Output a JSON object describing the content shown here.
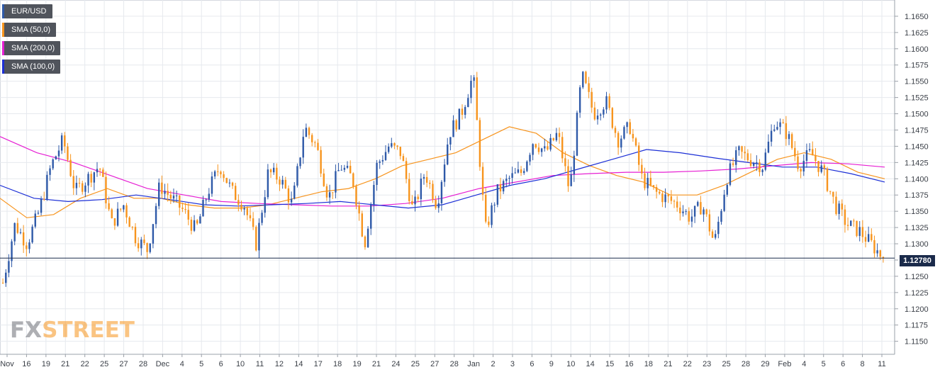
{
  "legend": [
    {
      "label": "EUR/USD",
      "color": "#2e59a8"
    },
    {
      "label": "SMA (50,0)",
      "color": "#f7941d"
    },
    {
      "label": "SMA (200,0)",
      "color": "#e61fd3"
    },
    {
      "label": "SMA (100,0)",
      "color": "#1c2fd6"
    }
  ],
  "watermark": {
    "part1": "FX",
    "part2": "STREET"
  },
  "last_price_label": "1.12780",
  "colors": {
    "up": "#2e59a8",
    "down": "#f7941d",
    "sma50": "#f7941d",
    "sma100": "#1c2fd6",
    "sma200": "#e61fd3",
    "grid": "#e6e9ee"
  },
  "chart_data": {
    "type": "line",
    "title": "",
    "xlabel": "",
    "ylabel": "",
    "ylim": [
      1.113,
      1.1675
    ],
    "yticks": [
      "1.1150",
      "1.1175",
      "1.1200",
      "1.1225",
      "1.1250",
      "1.1275",
      "1.1300",
      "1.1325",
      "1.1350",
      "1.1375",
      "1.1400",
      "1.1425",
      "1.1450",
      "1.1475",
      "1.1500",
      "1.1525",
      "1.1550",
      "1.1575",
      "1.1600",
      "1.1625",
      "1.1650"
    ],
    "xticks": [
      "Nov",
      "16",
      "19",
      "21",
      "22",
      "25",
      "27",
      "28",
      "Dec",
      "4",
      "5",
      "6",
      "10",
      "11",
      "12",
      "14",
      "17",
      "18",
      "19",
      "21",
      "24",
      "25",
      "27",
      "28",
      "Jan",
      "2",
      "3",
      "6",
      "9",
      "10",
      "14",
      "15",
      "16",
      "18",
      "21",
      "22",
      "23",
      "25",
      "28",
      "29",
      "Feb",
      "4",
      "5",
      "6",
      "8",
      "11"
    ],
    "grid": true,
    "last_price": 1.1278,
    "price_samples": [
      1.124,
      1.133,
      1.13,
      1.135,
      1.142,
      1.146,
      1.138,
      1.14,
      1.142,
      1.133,
      1.136,
      1.131,
      1.129,
      1.139,
      1.137,
      1.135,
      1.132,
      1.138,
      1.142,
      1.138,
      1.136,
      1.13,
      1.141,
      1.14,
      1.136,
      1.148,
      1.145,
      1.137,
      1.142,
      1.14,
      1.13,
      1.142,
      1.145,
      1.144,
      1.135,
      1.141,
      1.136,
      1.147,
      1.15,
      1.156,
      1.132,
      1.138,
      1.14,
      1.141,
      1.146,
      1.144,
      1.147,
      1.138,
      1.156,
      1.15,
      1.152,
      1.146,
      1.148,
      1.14,
      1.138,
      1.137,
      1.136,
      1.134,
      1.136,
      1.13,
      1.14,
      1.144,
      1.143,
      1.142,
      1.149,
      1.147,
      1.142,
      1.144,
      1.141,
      1.136,
      1.133,
      1.132,
      1.13,
      1.1278
    ],
    "series": [
      {
        "name": "EUR/USD",
        "color": "#2e59a8"
      },
      {
        "name": "SMA (50,0)",
        "color": "#f7941d",
        "values": [
          1.137,
          1.134,
          1.1345,
          1.137,
          1.1385,
          1.137,
          1.137,
          1.136,
          1.1355,
          1.1355,
          1.136,
          1.137,
          1.138,
          1.1385,
          1.14,
          1.142,
          1.143,
          1.144,
          1.146,
          1.148,
          1.147,
          1.144,
          1.142,
          1.1405,
          1.1395,
          1.1375,
          1.1375,
          1.139,
          1.141,
          1.143,
          1.144,
          1.143,
          1.141,
          1.14
        ]
      },
      {
        "name": "SMA (200,0)",
        "color": "#e61fd3",
        "values": [
          1.1465,
          1.144,
          1.1425,
          1.1405,
          1.1385,
          1.1375,
          1.1365,
          1.1362,
          1.136,
          1.1358,
          1.1358,
          1.1362,
          1.137,
          1.1385,
          1.1395,
          1.1405,
          1.1408,
          1.141,
          1.141,
          1.1412,
          1.1415,
          1.142,
          1.1425,
          1.1423,
          1.1418
        ]
      },
      {
        "name": "SMA (100,0)",
        "color": "#1c2fd6",
        "values": [
          1.139,
          1.137,
          1.1365,
          1.1368,
          1.1375,
          1.1368,
          1.136,
          1.1358,
          1.136,
          1.1362,
          1.1365,
          1.136,
          1.1355,
          1.136,
          1.1375,
          1.139,
          1.14,
          1.1415,
          1.143,
          1.1445,
          1.144,
          1.1432,
          1.1425,
          1.1418,
          1.1418,
          1.1408,
          1.1395
        ]
      }
    ]
  }
}
